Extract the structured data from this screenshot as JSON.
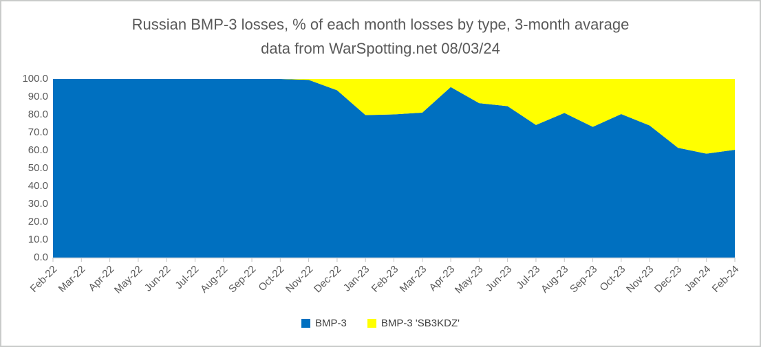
{
  "title": {
    "line1": "Russian BMP-3 losses, % of each month losses by type, 3-month avarage",
    "line2": "data from WarSpotting.net 08/03/24",
    "color": "#595959"
  },
  "axes": {
    "y_tick_labels": [
      "100.0",
      "90.0",
      "80.0",
      "70.0",
      "60.0",
      "50.0",
      "40.0",
      "30.0",
      "20.0",
      "10.0",
      "0.0"
    ],
    "label_color": "#595959",
    "axis_line_color": "#d9d9d9",
    "tick_color": "#c3c3c3"
  },
  "legend": {
    "items": [
      {
        "label": "BMP-3",
        "color": "#0070C0"
      },
      {
        "label": "BMP-3 'SB3KDZ'",
        "color": "#FFFF00"
      }
    ]
  },
  "chart_data": {
    "type": "area",
    "stacked": true,
    "units": "percent of monthly losses",
    "title": "Russian BMP-3 losses, % of each month losses by type, 3-month avarage — data from WarSpotting.net 08/03/24",
    "categories": [
      "Feb-22",
      "Mar-22",
      "Apr-22",
      "May-22",
      "Jun-22",
      "Jul-22",
      "Aug-22",
      "Sep-22",
      "Oct-22",
      "Nov-22",
      "Dec-22",
      "Jan-23",
      "Feb-23",
      "Mar-23",
      "Apr-23",
      "May-23",
      "Jun-23",
      "Jul-23",
      "Aug-23",
      "Sep-23",
      "Oct-23",
      "Nov-23",
      "Dec-23",
      "Jan-24",
      "Feb-24"
    ],
    "series": [
      {
        "name": "BMP-3",
        "color": "#0070C0",
        "values": [
          100,
          100,
          100,
          100,
          100,
          100,
          100,
          100,
          100,
          99.5,
          93.7,
          79.8,
          80.2,
          81.2,
          95.5,
          86.5,
          84.8,
          74.3,
          81.0,
          73.2,
          80.4,
          74.0,
          61.5,
          58.2,
          60.4
        ]
      },
      {
        "name": "BMP-3 'SB3KDZ'",
        "color": "#FFFF00",
        "values": [
          0,
          0,
          0,
          0,
          0,
          0,
          0,
          0,
          0,
          0.5,
          6.3,
          20.2,
          19.8,
          18.8,
          4.5,
          13.5,
          15.2,
          25.7,
          19.0,
          26.8,
          19.6,
          26.0,
          38.5,
          41.8,
          39.6
        ]
      }
    ],
    "ylim": [
      0,
      100
    ],
    "y_tick_step": 10,
    "grid": false,
    "legend_position": "bottom"
  }
}
